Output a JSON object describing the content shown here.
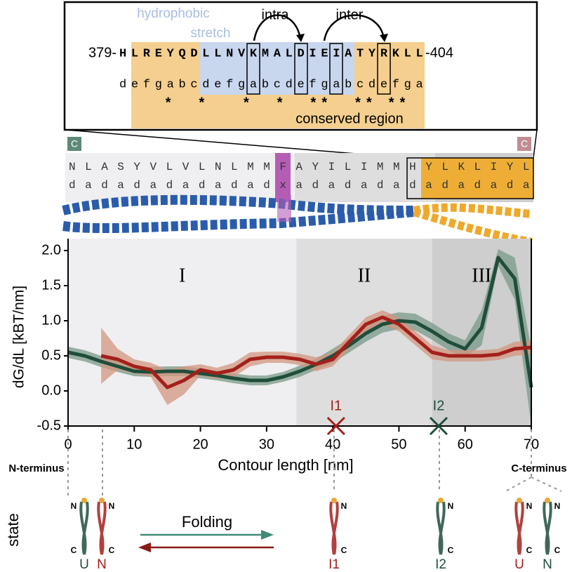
{
  "chart_data": {
    "type": "line",
    "xlabel": "Contour length [nm]",
    "ylabel": "dG/dL [kBT/nm]",
    "xlim": [
      0,
      70
    ],
    "ylim": [
      -0.5,
      2.0
    ],
    "xticks": [
      0,
      10,
      20,
      30,
      40,
      50,
      60,
      70
    ],
    "yticks": [
      -0.5,
      0.5,
      {
        "value": 0,
        "label": "0.0"
      },
      {
        "value": 1,
        "label": "1.0"
      },
      1.5,
      {
        "value": 2,
        "label": "2.0"
      }
    ],
    "x": [
      0,
      2.5,
      5,
      7.5,
      10,
      12.5,
      15,
      17.5,
      20,
      22.5,
      25,
      27.5,
      30,
      32.5,
      35,
      37.5,
      40,
      42.5,
      45,
      47.5,
      50,
      52.5,
      55,
      57.5,
      60,
      62.5,
      65,
      67.5,
      70
    ],
    "series": [
      {
        "color": "#1f4e3b",
        "band_color": "#7a9a88",
        "values": [
          0.55,
          0.5,
          0.42,
          0.35,
          0.28,
          0.27,
          0.28,
          0.28,
          0.25,
          0.22,
          0.18,
          0.15,
          0.15,
          0.2,
          0.28,
          0.38,
          0.5,
          0.65,
          0.82,
          0.95,
          1.0,
          0.98,
          0.85,
          0.7,
          0.6,
          0.9,
          1.9,
          1.6,
          0.05
        ],
        "errors": [
          0.08,
          0.08,
          0.08,
          0.08,
          0.07,
          0.07,
          0.07,
          0.07,
          0.07,
          0.07,
          0.07,
          0.07,
          0.07,
          0.07,
          0.08,
          0.08,
          0.1,
          0.1,
          0.12,
          0.12,
          0.12,
          0.12,
          0.12,
          0.12,
          0.12,
          0.25,
          0.12,
          0.3,
          0.55
        ]
      },
      {
        "color": "#a3201b",
        "band_color": "#d3957f",
        "values": [
          null,
          null,
          0.5,
          0.45,
          0.35,
          0.3,
          0.05,
          0.15,
          0.3,
          0.25,
          0.3,
          0.45,
          0.48,
          0.48,
          0.45,
          0.38,
          0.45,
          0.7,
          0.95,
          1.05,
          0.95,
          0.75,
          0.55,
          0.5,
          0.5,
          0.5,
          0.52,
          0.6,
          0.62
        ],
        "errors": [
          null,
          null,
          0.4,
          0.15,
          0.1,
          0.1,
          0.25,
          0.2,
          0.08,
          0.08,
          0.1,
          0.1,
          0.08,
          0.08,
          0.08,
          0.1,
          0.1,
          0.1,
          0.1,
          0.1,
          0.1,
          0.1,
          0.1,
          0.08,
          0.08,
          0.08,
          0.08,
          0.1,
          0.1
        ]
      }
    ],
    "regions": [
      {
        "label": "I",
        "start": 0,
        "end": 34.5,
        "color": "#efeef0"
      },
      {
        "label": "II",
        "start": 34.5,
        "end": 55,
        "color": "#dedede"
      },
      {
        "label": "III",
        "start": 55,
        "end": 70,
        "color": "#cecece"
      }
    ],
    "markers": [
      {
        "label": "I1",
        "x": 40.5,
        "y": -0.5,
        "color": "#a3201b"
      },
      {
        "label": "I2",
        "x": 56,
        "y": -0.5,
        "color": "#1f4e3b"
      }
    ]
  },
  "inset": {
    "start": "379-",
    "end": "-404",
    "sequence": "HLREYQDLLNVKMALDIEIATYRKLL",
    "heptad": "defgabcdefgabcdefgabcdefga",
    "stars": "    *  *   *  *  **  ** **",
    "hydrophobic": [
      "hydrophobic",
      "stretch"
    ],
    "intra": "intra",
    "inter": "inter",
    "conserved": "conserved region"
  },
  "sequence_row": {
    "sequence": "NLASYVLVLNLMMFAYILIMMHYLKLIYL",
    "heptad": "dadadadadadadxadadadadadadada",
    "left_cap": "C",
    "right_cap": "C"
  },
  "bottom": {
    "n_terminus": "N-terminus",
    "c_terminus": "C-terminus",
    "state": "state",
    "folding": "Folding",
    "states": [
      {
        "label": "U",
        "top": "N",
        "bottom": "C",
        "color": "#1f4e3b"
      },
      {
        "label": "N",
        "top": "N",
        "bottom": "C",
        "color": "#a3201b"
      },
      {
        "label": "I1",
        "top": "N",
        "bottom": "C",
        "color": "#a3201b"
      },
      {
        "label": "I2",
        "top": "N",
        "bottom": "C",
        "color": "#1f4e3b"
      },
      {
        "label": "U",
        "top": "N",
        "bottom": "C",
        "color": "#a3201b"
      },
      {
        "label": "N",
        "top": "N",
        "bottom": "C",
        "color": "#1f4e3b"
      }
    ]
  }
}
